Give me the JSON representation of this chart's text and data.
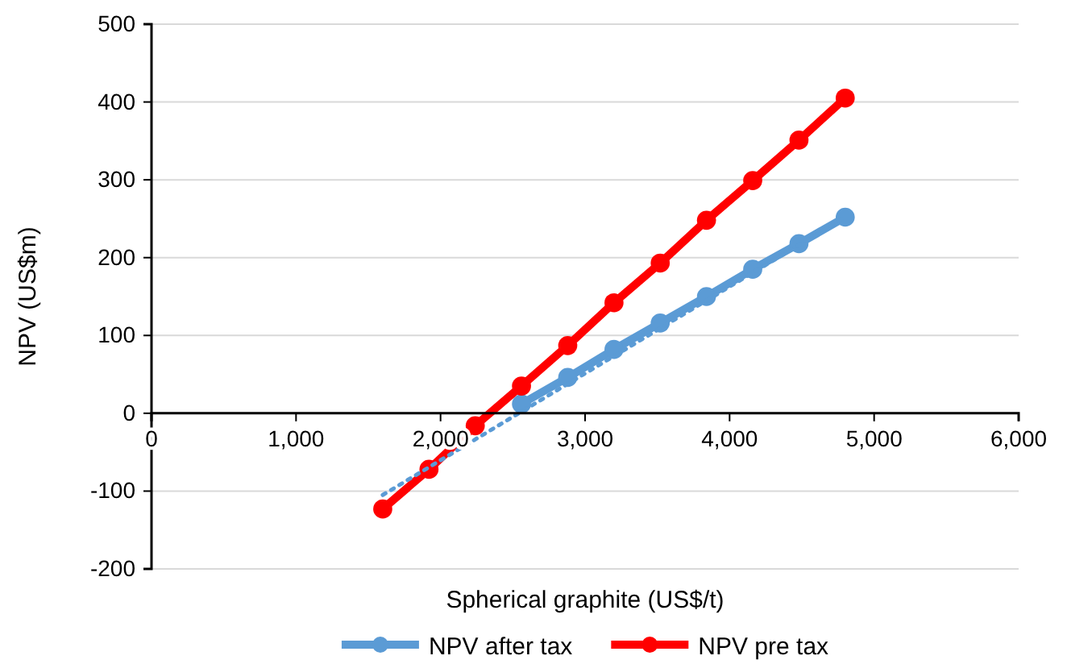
{
  "chart_data": {
    "type": "line",
    "xlabel": "Spherical graphite (US$/t)",
    "ylabel": "NPV  (US$m)",
    "x": [
      1600,
      1920,
      2240,
      2560,
      2880,
      3200,
      3520,
      3840,
      4160,
      4480,
      4800
    ],
    "series": [
      {
        "name": "NPV after tax",
        "color": "#5b9bd5",
        "values": [
          null,
          null,
          null,
          12,
          46,
          82,
          116,
          150,
          185,
          218,
          252
        ]
      },
      {
        "name": "NPV pre tax",
        "color": "#ff0000",
        "values": [
          -123,
          -72,
          -16,
          35,
          87,
          142,
          193,
          248,
          299,
          351,
          405
        ]
      },
      {
        "color": "#5b9bd5",
        "x": [
          1600,
          4800
        ],
        "values": [
          -105,
          252
        ],
        "marker": "none",
        "line_style": "dotted"
      }
    ],
    "xlim": [
      0,
      6000
    ],
    "xticks": [
      {
        "value": 0,
        "label": "0"
      },
      {
        "value": 1000,
        "label": "1,000"
      },
      {
        "value": 2000,
        "label": "2,000"
      },
      {
        "value": 3000,
        "label": "3,000"
      },
      {
        "value": 4000,
        "label": "4,000"
      },
      {
        "value": 5000,
        "label": "5,000"
      },
      {
        "value": 6000,
        "label": "6,000"
      }
    ],
    "ylim": [
      -200,
      500
    ],
    "yticks": [
      -200,
      -100,
      0,
      100,
      200,
      300,
      400,
      500
    ],
    "grid": "y",
    "legend": "bottom",
    "marker": "circle",
    "line_style": "solid"
  }
}
